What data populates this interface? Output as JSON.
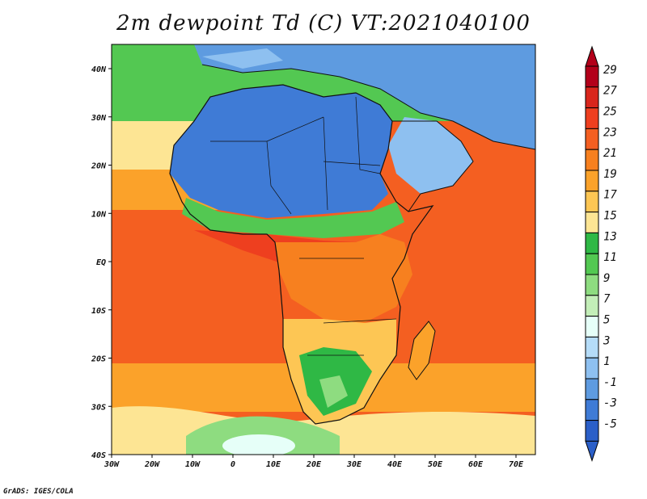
{
  "title": "2m dewpoint Td (C) VT:2021040100",
  "credit": "GrADS: IGES/COLA",
  "map": {
    "lat_labels": [
      "40N",
      "30N",
      "20N",
      "10N",
      "EQ",
      "10S",
      "20S",
      "30S",
      "40S"
    ],
    "lon_labels": [
      "30W",
      "20W",
      "10W",
      "0",
      "10E",
      "20E",
      "30E",
      "40E",
      "50E",
      "60E",
      "70E"
    ]
  },
  "colorbar": {
    "labels": [
      "29",
      "27",
      "25",
      "23",
      "21",
      "19",
      "17",
      "15",
      "13",
      "11",
      "9",
      "7",
      "5",
      "3",
      "1",
      "-1",
      "-3",
      "-5"
    ],
    "colors": [
      "#b3001a",
      "#d9261c",
      "#ee3f1f",
      "#f45f21",
      "#f7801f",
      "#fba22a",
      "#fdc654",
      "#fde594",
      "#2fb845",
      "#53c852",
      "#8edc80",
      "#c3eeb8",
      "#e6fff8",
      "#b5dcf8",
      "#8ec0f0",
      "#5e9be0",
      "#3f7bd6",
      "#2b5fc8"
    ]
  }
}
